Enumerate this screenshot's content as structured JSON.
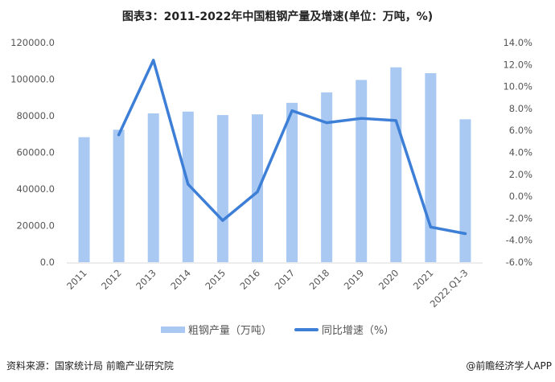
{
  "chart_data": {
    "type": "bar+line",
    "title": "图表3：2011-2022年中国粗钢产量及增速(单位：万吨，%)",
    "categories": [
      "2011",
      "2012",
      "2013",
      "2014",
      "2015",
      "2016",
      "2017",
      "2018",
      "2019",
      "2020",
      "2021",
      "2022.Q1-3"
    ],
    "series": [
      {
        "name": "粗钢产量（万吨）",
        "type": "bar",
        "axis": "left",
        "color": "#a9c9f2",
        "values": [
          68300,
          72400,
          81300,
          82300,
          80400,
          80800,
          87100,
          92800,
          99600,
          106500,
          103300,
          78100
        ]
      },
      {
        "name": "同比增速（%）",
        "type": "line",
        "axis": "right",
        "color": "#3d7fd6",
        "values": [
          null,
          5.6,
          12.4,
          1.1,
          -2.2,
          0.4,
          7.8,
          6.7,
          7.1,
          6.9,
          -2.8,
          -3.4
        ]
      }
    ],
    "left_axis": {
      "ylim": [
        0,
        120000
      ],
      "ticks": [
        "0.0",
        "20000.0",
        "40000.0",
        "60000.0",
        "80000.0",
        "100000.0",
        "120000.0"
      ]
    },
    "right_axis": {
      "ylim": [
        -6,
        14
      ],
      "ticks": [
        "-6.0%",
        "-4.0%",
        "-2.0%",
        "0.0%",
        "2.0%",
        "4.0%",
        "6.0%",
        "8.0%",
        "10.0%",
        "12.0%",
        "14.0%"
      ]
    },
    "legend_position": "bottom",
    "grid": false
  },
  "footer": {
    "source": "资料来源：国家统计局 前瞻产业研究院",
    "credit": "@前瞻经济学人APP"
  }
}
